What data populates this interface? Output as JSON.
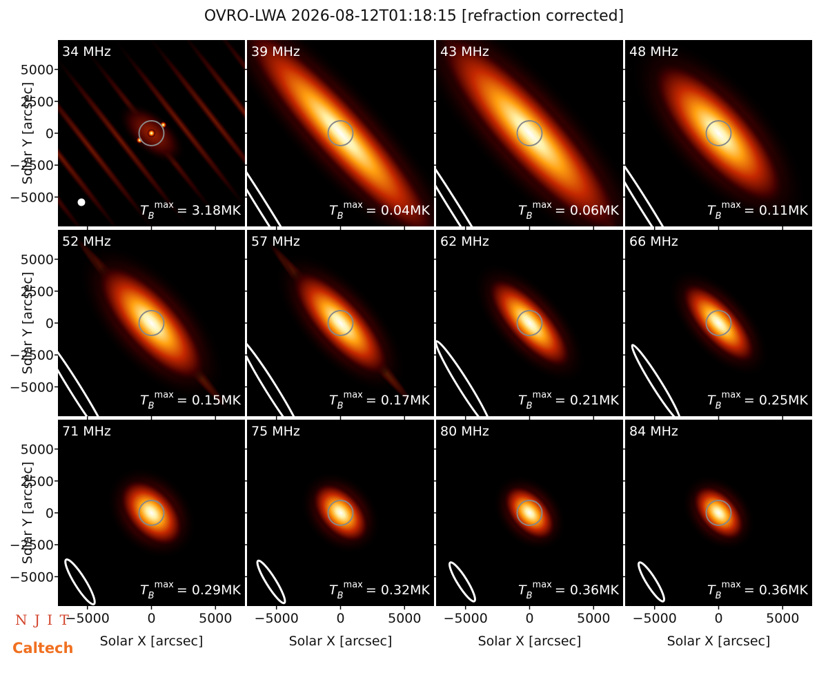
{
  "chart_data": {
    "type": "image",
    "title": "OVRO-LWA 2026-08-12T01:18:15 [refraction corrected]",
    "xlabel": "Solar X [arcsec]",
    "ylabel": "Solar Y [arcsec]",
    "xlim": [
      -7300,
      7300
    ],
    "ylim": [
      -7300,
      7300
    ],
    "xticks": [
      {
        "value": -5000,
        "label": "−5000"
      },
      0,
      5000
    ],
    "yticks": [
      {
        "value": -5000,
        "label": "−5000"
      },
      {
        "value": -2500,
        "label": "−2500"
      },
      0,
      2500,
      5000
    ],
    "tb_symbol": "T",
    "tb_sub": "B",
    "tb_sup": "max",
    "panels": [
      {
        "label": "34 MHz",
        "tb_max": "= 3.18MK"
      },
      {
        "label": "39 MHz",
        "tb_max": "= 0.04MK"
      },
      {
        "label": "43 MHz",
        "tb_max": "= 0.06MK"
      },
      {
        "label": "48 MHz",
        "tb_max": "= 0.11MK"
      },
      {
        "label": "52 MHz",
        "tb_max": "= 0.15MK"
      },
      {
        "label": "57 MHz",
        "tb_max": "= 0.17MK"
      },
      {
        "label": "62 MHz",
        "tb_max": "= 0.21MK"
      },
      {
        "label": "66 MHz",
        "tb_max": "= 0.25MK"
      },
      {
        "label": "71 MHz",
        "tb_max": "= 0.29MK"
      },
      {
        "label": "75 MHz",
        "tb_max": "= 0.32MK"
      },
      {
        "label": "80 MHz",
        "tb_max": "= 0.36MK"
      },
      {
        "label": "84 MHz",
        "tb_max": "= 0.36MK"
      }
    ]
  },
  "logos": {
    "njit": "N J I T",
    "caltech": "Caltech"
  }
}
